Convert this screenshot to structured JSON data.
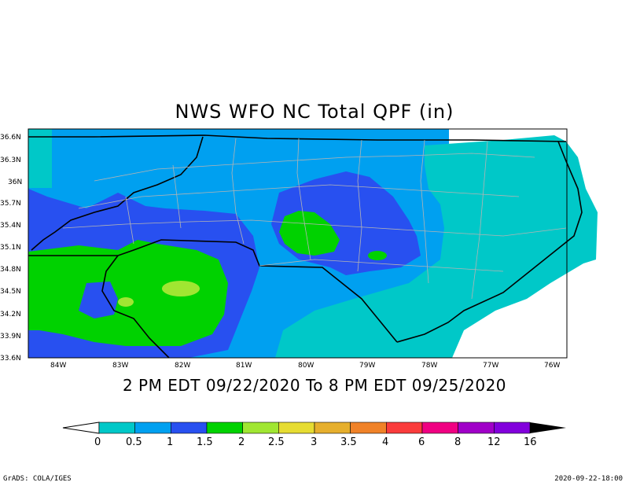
{
  "title": "NWS WFO NC Total QPF (in)",
  "valid_period": "2 PM EDT 09/22/2020 To 8 PM EDT 09/25/2020",
  "footer_left": "GrADS: COLA/IGES",
  "footer_right": "2020-09-22-18:00",
  "map": {
    "lat_ticks": [
      "36.6N",
      "36.3N",
      "36N",
      "35.7N",
      "35.4N",
      "35.1N",
      "34.8N",
      "34.5N",
      "34.2N",
      "33.9N",
      "33.6N"
    ],
    "lon_ticks": [
      "84W",
      "83W",
      "82W",
      "81W",
      "80W",
      "79W",
      "78W",
      "77W",
      "76W"
    ],
    "lat_range": [
      33.6,
      36.6
    ],
    "lon_range": [
      -84.4,
      -75.6
    ]
  },
  "colorbar": {
    "labels": [
      "0",
      "0.5",
      "1",
      "1.5",
      "2",
      "2.5",
      "3",
      "3.5",
      "4",
      "6",
      "8",
      "12",
      "16"
    ],
    "colors": [
      "#00c8c8",
      "#00a0f0",
      "#2850f0",
      "#00d200",
      "#a0e632",
      "#e6dc32",
      "#e6af2d",
      "#f08228",
      "#fa3c3c",
      "#f00082",
      "#a000c8",
      "#8200dc"
    ]
  }
}
